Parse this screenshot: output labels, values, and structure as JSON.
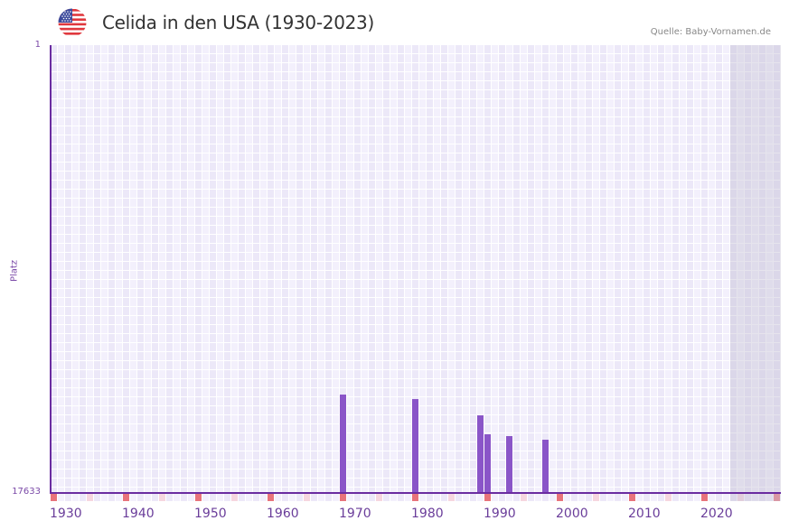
{
  "header": {
    "flag_icon": "us-flag-icon",
    "title": "Celida in den USA (1930-2023)",
    "source": "Quelle: Baby-Vornamen.de"
  },
  "colors": {
    "bar": "#8a55c8",
    "axis": "#6a2ca0",
    "decade_marker": "#e8737b",
    "half_decade_marker": "#f6d6df",
    "label": "#6a3d9a",
    "future_shade": "#e2dfee"
  },
  "chart_data": {
    "type": "bar",
    "title": "Celida in den USA (1930-2023)",
    "xlabel": "",
    "ylabel": "Platz",
    "y_inverted": true,
    "ylim": [
      1,
      17633
    ],
    "y_tick_labels": [
      "1",
      "17633"
    ],
    "x_range": [
      1930,
      2030
    ],
    "data_range": [
      1930,
      2023
    ],
    "future_shaded_range": [
      2024,
      2030
    ],
    "x_tick_labels": [
      "1930",
      "1940",
      "1950",
      "1960",
      "1970",
      "1980",
      "1990",
      "2000",
      "2010",
      "2020"
    ],
    "grid": true,
    "legend": null,
    "categories": [
      "1970",
      "1980",
      "1989",
      "1990",
      "1993",
      "1998"
    ],
    "values": [
      13786,
      13964,
      14604,
      15352,
      15423,
      15566
    ],
    "value_meaning": "rank (Platz), lower is more popular"
  }
}
